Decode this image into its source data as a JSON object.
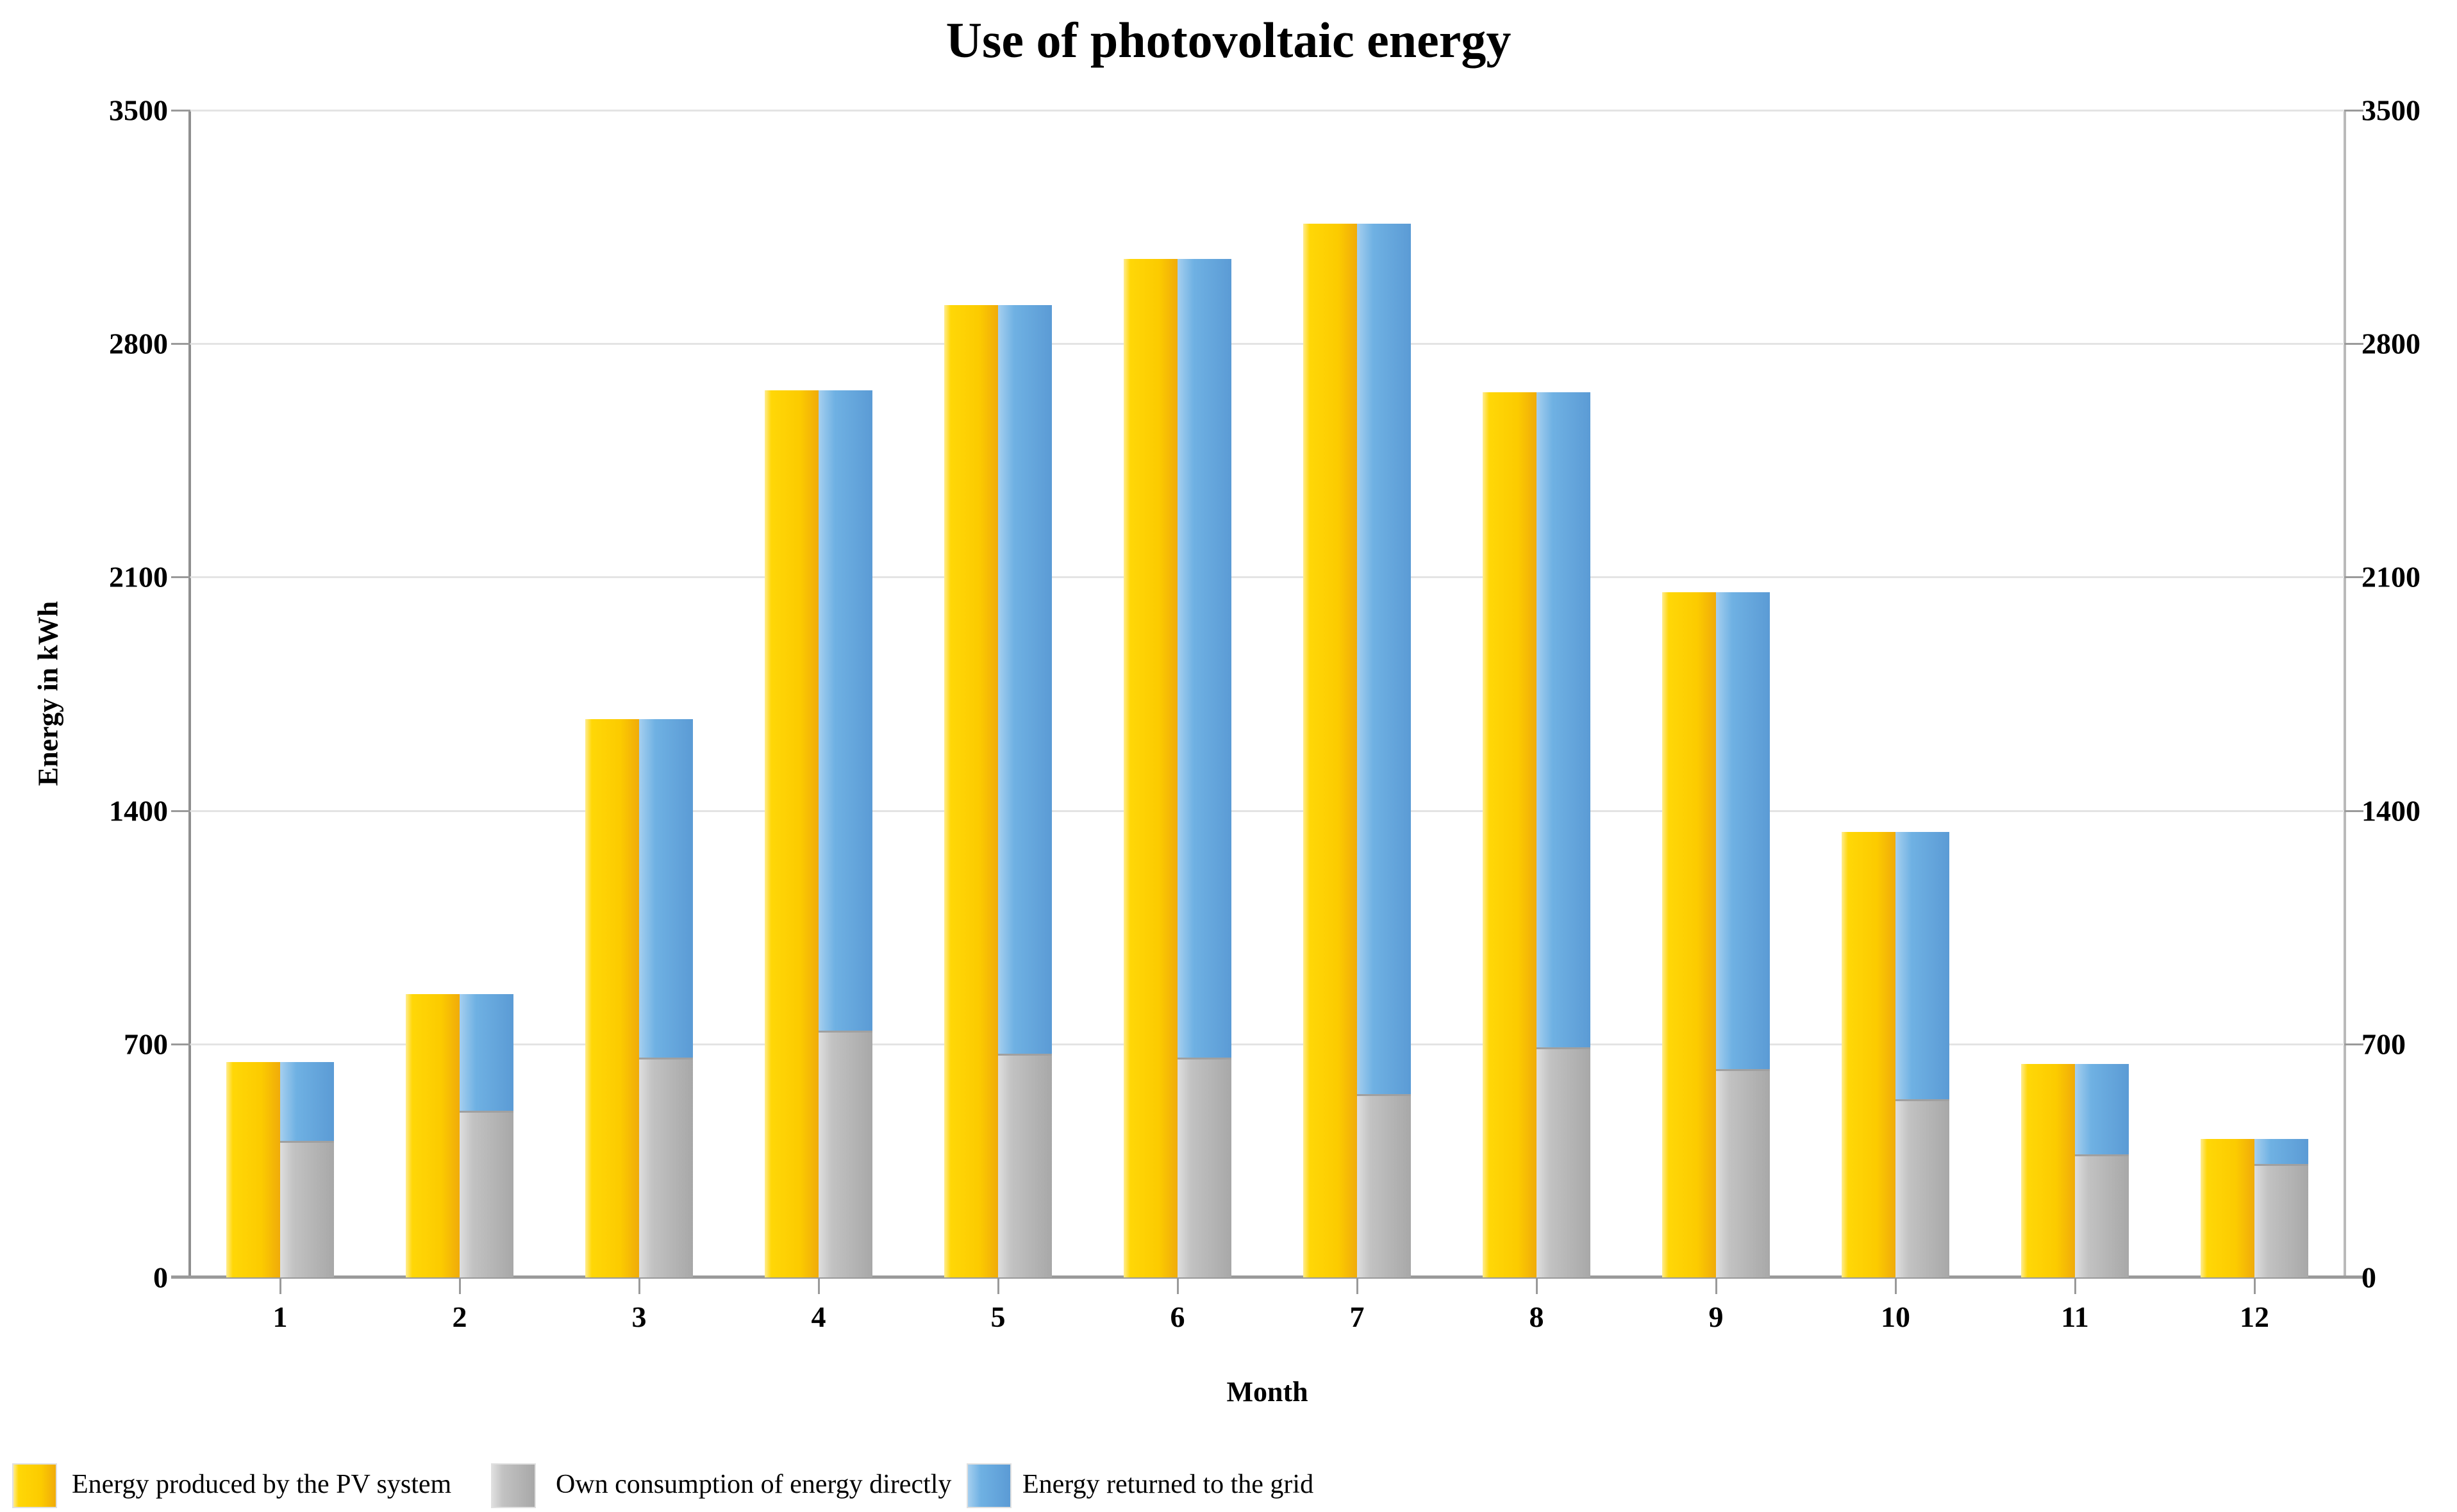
{
  "title": "Use of photovoltaic energy",
  "colors": {
    "produced_main": "#ffd707",
    "produced_light": "#ffec8f",
    "produced_dark": "#f0ab0a",
    "own_main": "#b5b5b5",
    "own_light": "#dedede",
    "own_dark": "#a8a8a8",
    "returned_main": "#6fb1e3",
    "returned_light": "#a5cfef",
    "returned_dark": "#5b9bd5",
    "gridline": "#e4e4e4",
    "axis": "#9a9a9a",
    "text": "#000000"
  },
  "chart_data": {
    "type": "bar",
    "title": "Use of photovoltaic energy",
    "xlabel": "Month",
    "ylabel": "Energy in kWh",
    "categories": [
      "1",
      "2",
      "3",
      "4",
      "5",
      "6",
      "7",
      "8",
      "9",
      "10",
      "11",
      "12"
    ],
    "y_tick_values": [
      0,
      700,
      1400,
      2100,
      2800,
      3500
    ],
    "y_tick_labels": [
      "0",
      "700",
      "1400",
      "2100",
      "2800",
      "3500"
    ],
    "ylim": [
      0,
      3500
    ],
    "y_axis_sides": "labels shown on both left and right",
    "grid": "horizontal major gridlines only",
    "legend_position": "bottom-left",
    "layout_hint": "per month: solid produced bar on left; adjacent stacked bar on right (own consumption bottom, returned-to-grid top); stack total equals produced",
    "series": [
      {
        "name": "Energy produced by the PV system",
        "role": "left solid bar",
        "values": [
          645,
          850,
          1675,
          2660,
          2915,
          3055,
          3160,
          2655,
          2055,
          1335,
          640,
          415
        ]
      },
      {
        "name": "Own consumption of energy directly",
        "role": "stack bottom",
        "values": [
          410,
          500,
          660,
          740,
          670,
          660,
          550,
          690,
          625,
          535,
          370,
          340
        ]
      },
      {
        "name": "Energy returned to the grid",
        "role": "stack top",
        "values": [
          235,
          350,
          1015,
          1920,
          2245,
          2395,
          2610,
          1965,
          1430,
          800,
          270,
          75
        ]
      }
    ]
  }
}
